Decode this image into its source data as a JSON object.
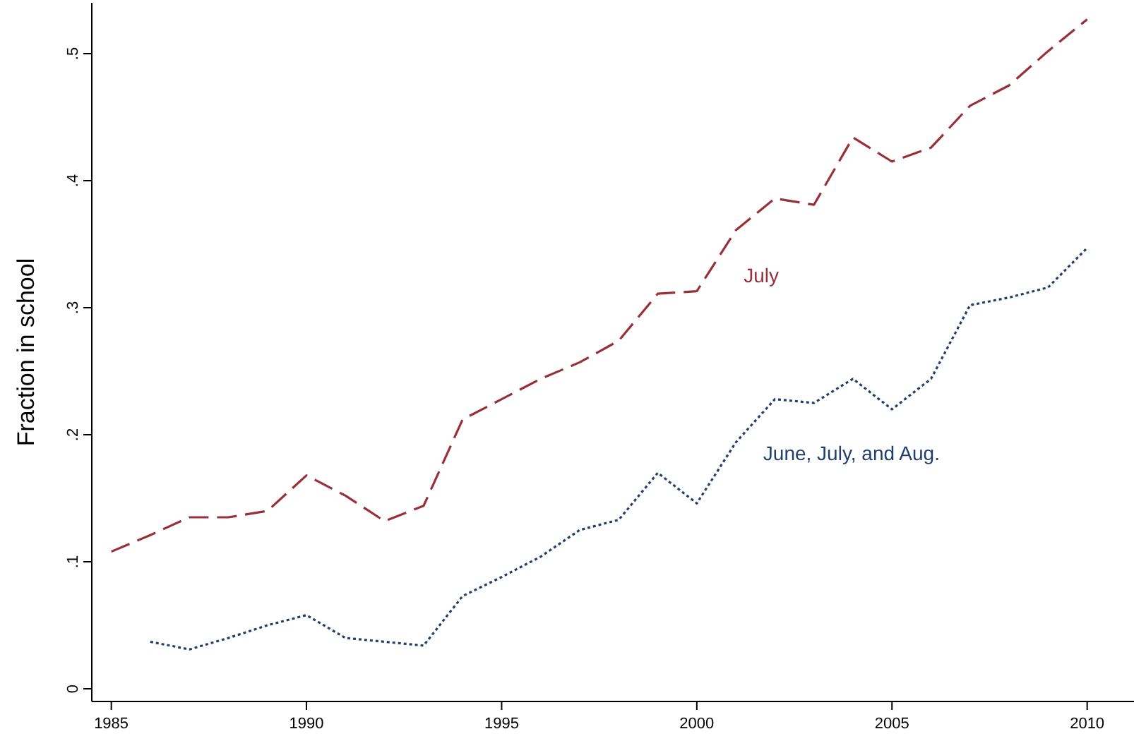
{
  "chart_data": {
    "type": "line",
    "ylabel": "Fraction in school",
    "x": [
      1985,
      1986,
      1987,
      1988,
      1989,
      1990,
      1991,
      1992,
      1993,
      1994,
      1995,
      1996,
      1997,
      1998,
      1999,
      2000,
      2001,
      2002,
      2003,
      2004,
      2005,
      2006,
      2007,
      2008,
      2009,
      2010
    ],
    "series": [
      {
        "name": "July",
        "color": "#983038",
        "line_style": "dashed",
        "values": [
          0.108,
          0.121,
          0.135,
          0.135,
          0.14,
          0.168,
          0.152,
          0.132,
          0.144,
          0.212,
          0.228,
          0.244,
          0.257,
          0.274,
          0.311,
          0.313,
          0.361,
          0.386,
          0.381,
          0.434,
          0.415,
          0.426,
          0.459,
          0.475,
          0.502,
          0.527
        ]
      },
      {
        "name": "June, July, and Aug.",
        "color": "#1f3f6e",
        "line_style": "dotted",
        "values": [
          null,
          0.037,
          0.031,
          0.04,
          0.05,
          0.058,
          0.04,
          0.037,
          0.034,
          0.073,
          0.088,
          0.104,
          0.125,
          0.133,
          0.17,
          0.146,
          0.194,
          0.228,
          0.225,
          0.244,
          0.22,
          0.244,
          0.302,
          0.308,
          0.316,
          0.347
        ]
      }
    ],
    "xlim": [
      1984.5,
      2011.2
    ],
    "ylim": [
      -0.01,
      0.54
    ],
    "xticks": [
      1985,
      1990,
      1995,
      2000,
      2005,
      2010
    ],
    "yticks": [
      {
        "value": 0,
        "label": "0"
      },
      {
        "value": 0.1,
        "label": ".1"
      },
      {
        "value": 0.2,
        "label": ".2"
      },
      {
        "value": 0.3,
        "label": ".3"
      },
      {
        "value": 0.4,
        "label": ".4"
      },
      {
        "value": 0.5,
        "label": ".5"
      }
    ],
    "grid": false
  }
}
